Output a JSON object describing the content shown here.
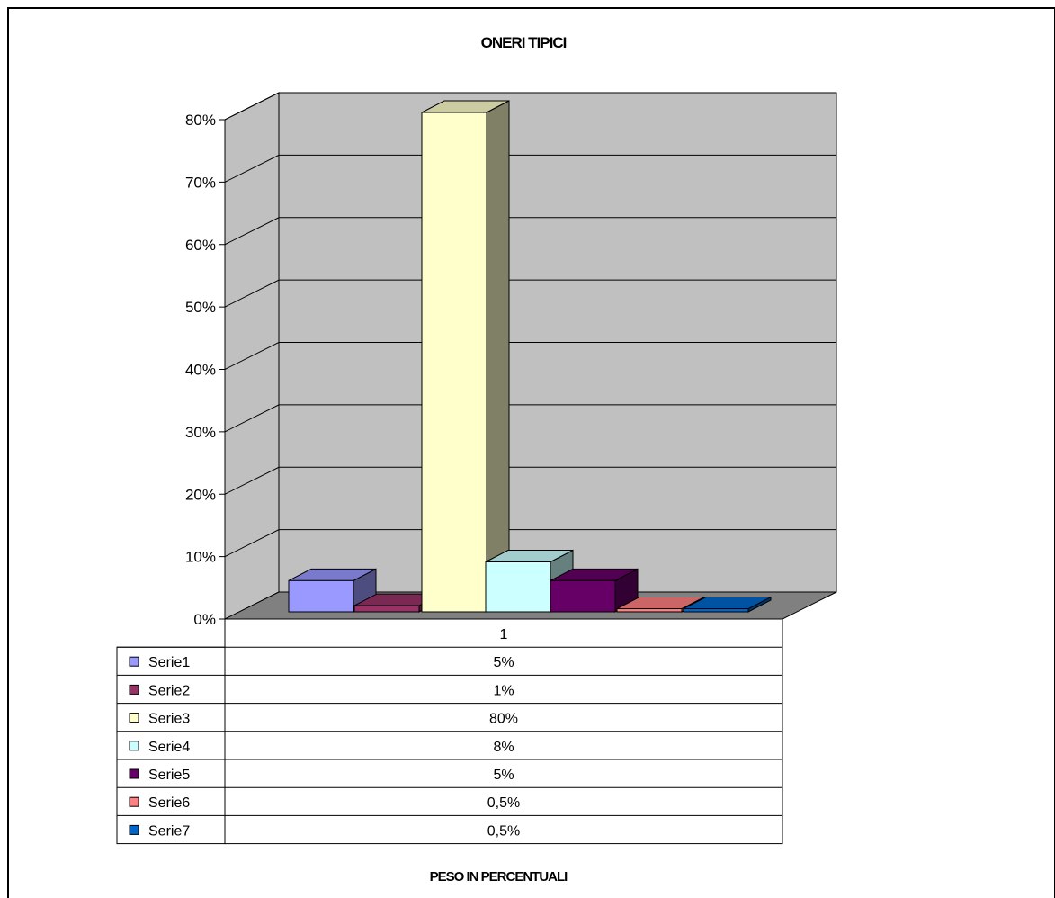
{
  "chart_data": {
    "type": "bar",
    "title": "ONERI TIPICI",
    "xlabel": "PESO IN PERCENTUALI",
    "ylabel": "",
    "categories": [
      "1"
    ],
    "ylim": [
      0,
      0.8
    ],
    "yticks": [
      "0%",
      "10%",
      "20%",
      "30%",
      "40%",
      "50%",
      "60%",
      "70%",
      "80%"
    ],
    "grid": true,
    "legend": "data-table",
    "series": [
      {
        "name": "Serie1",
        "values": [
          0.05
        ],
        "label": "5%",
        "color": "#9999ff"
      },
      {
        "name": "Serie2",
        "values": [
          0.01
        ],
        "label": "1%",
        "color": "#993366"
      },
      {
        "name": "Serie3",
        "values": [
          0.8
        ],
        "label": "80%",
        "color": "#ffffcc"
      },
      {
        "name": "Serie4",
        "values": [
          0.08
        ],
        "label": "8%",
        "color": "#ccffff"
      },
      {
        "name": "Serie5",
        "values": [
          0.05
        ],
        "label": "5%",
        "color": "#660066"
      },
      {
        "name": "Serie6",
        "values": [
          0.005
        ],
        "label": "0,5%",
        "color": "#ff8080"
      },
      {
        "name": "Serie7",
        "values": [
          0.005
        ],
        "label": "0,5%",
        "color": "#0066cc"
      }
    ],
    "colors": {
      "wall": "#c0c0c0",
      "floor": "#808080"
    }
  }
}
